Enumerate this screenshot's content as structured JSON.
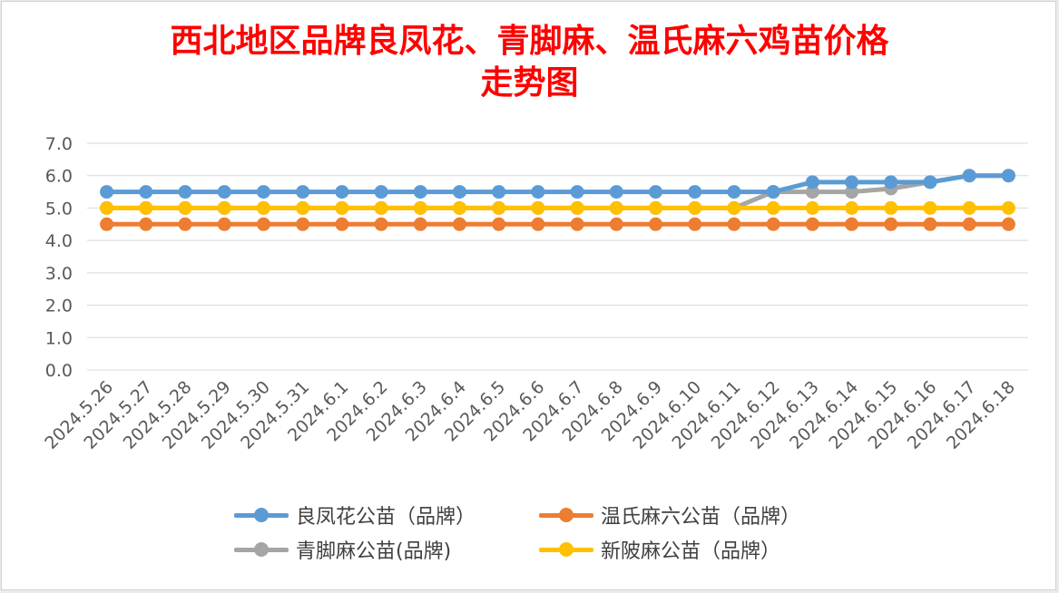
{
  "chart_data": {
    "type": "line",
    "title_lines": [
      "西北地区品牌良凤花、青脚麻、温氏麻六鸡苗价格",
      "走势图"
    ],
    "categories": [
      "2024.5.26",
      "2024.5.27",
      "2024.5.28",
      "2024.5.29",
      "2024.5.30",
      "2024.5.31",
      "2024.6.1",
      "2024.6.2",
      "2024.6.3",
      "2024.6.4",
      "2024.6.5",
      "2024.6.6",
      "2024.6.7",
      "2024.6.8",
      "2024.6.9",
      "2024.6.10",
      "2024.6.11",
      "2024.6.12",
      "2024.6.13",
      "2024.6.14",
      "2024.6.15",
      "2024.6.16",
      "2024.6.17",
      "2024.6.18"
    ],
    "y_ticks": [
      "0.0",
      "1.0",
      "2.0",
      "3.0",
      "4.0",
      "5.0",
      "6.0",
      "7.0"
    ],
    "ylim": [
      0,
      7
    ],
    "grid": true,
    "legend_position": "bottom",
    "series": [
      {
        "name": "良凤花公苗（品牌）",
        "color": "#5b9bd5",
        "values": [
          5.5,
          5.5,
          5.5,
          5.5,
          5.5,
          5.5,
          5.5,
          5.5,
          5.5,
          5.5,
          5.5,
          5.5,
          5.5,
          5.5,
          5.5,
          5.5,
          5.5,
          5.5,
          5.8,
          5.8,
          5.8,
          5.8,
          6.0,
          6.0
        ]
      },
      {
        "name": "温氏麻六公苗（品牌）",
        "color": "#ed7d31",
        "values": [
          4.5,
          4.5,
          4.5,
          4.5,
          4.5,
          4.5,
          4.5,
          4.5,
          4.5,
          4.5,
          4.5,
          4.5,
          4.5,
          4.5,
          4.5,
          4.5,
          4.5,
          4.5,
          4.5,
          4.5,
          4.5,
          4.5,
          4.5,
          4.5
        ]
      },
      {
        "name": "青脚麻公苗(品牌)",
        "color": "#a5a5a5",
        "values": [
          5.0,
          5.0,
          5.0,
          5.0,
          5.0,
          5.0,
          5.0,
          5.0,
          5.0,
          5.0,
          5.0,
          5.0,
          5.0,
          5.0,
          5.0,
          5.0,
          5.0,
          5.5,
          5.5,
          5.5,
          5.6,
          5.8,
          6.0,
          6.0
        ]
      },
      {
        "name": "新陂麻公苗（品牌）",
        "color": "#ffc000",
        "values": [
          5.0,
          5.0,
          5.0,
          5.0,
          5.0,
          5.0,
          5.0,
          5.0,
          5.0,
          5.0,
          5.0,
          5.0,
          5.0,
          5.0,
          5.0,
          5.0,
          5.0,
          5.0,
          5.0,
          5.0,
          5.0,
          5.0,
          5.0,
          5.0
        ]
      }
    ]
  }
}
